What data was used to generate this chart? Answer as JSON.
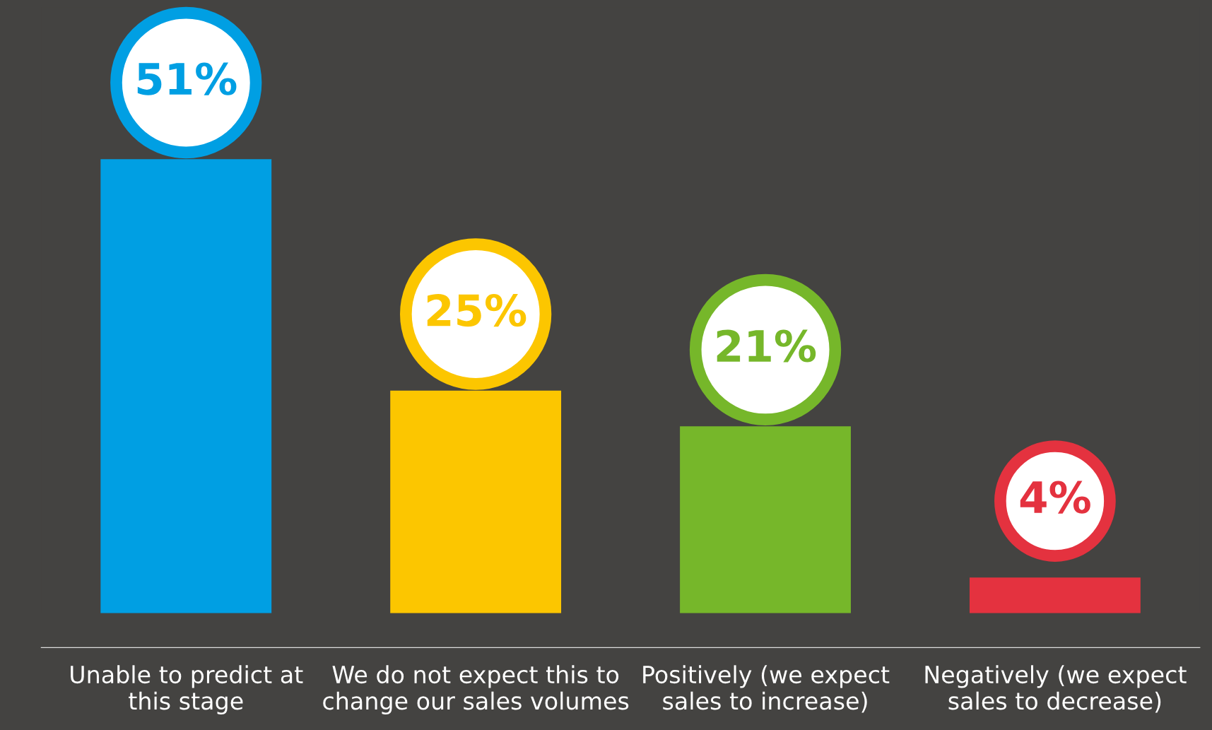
{
  "chart_data": {
    "type": "bar",
    "categories": [
      "Unable to predict at\nthis stage",
      "We do not expect this to\nchange our sales volumes",
      "Positively (we expect\nsales to increase)",
      "Negatively (we expect\nsales to decrease)"
    ],
    "values": [
      51,
      25,
      21,
      4
    ],
    "value_labels": [
      "51%",
      "25%",
      "21%",
      "4%"
    ],
    "colors": [
      "#009fe3",
      "#fcc600",
      "#76b72a",
      "#e4323f"
    ],
    "grid": false,
    "legend": false
  }
}
